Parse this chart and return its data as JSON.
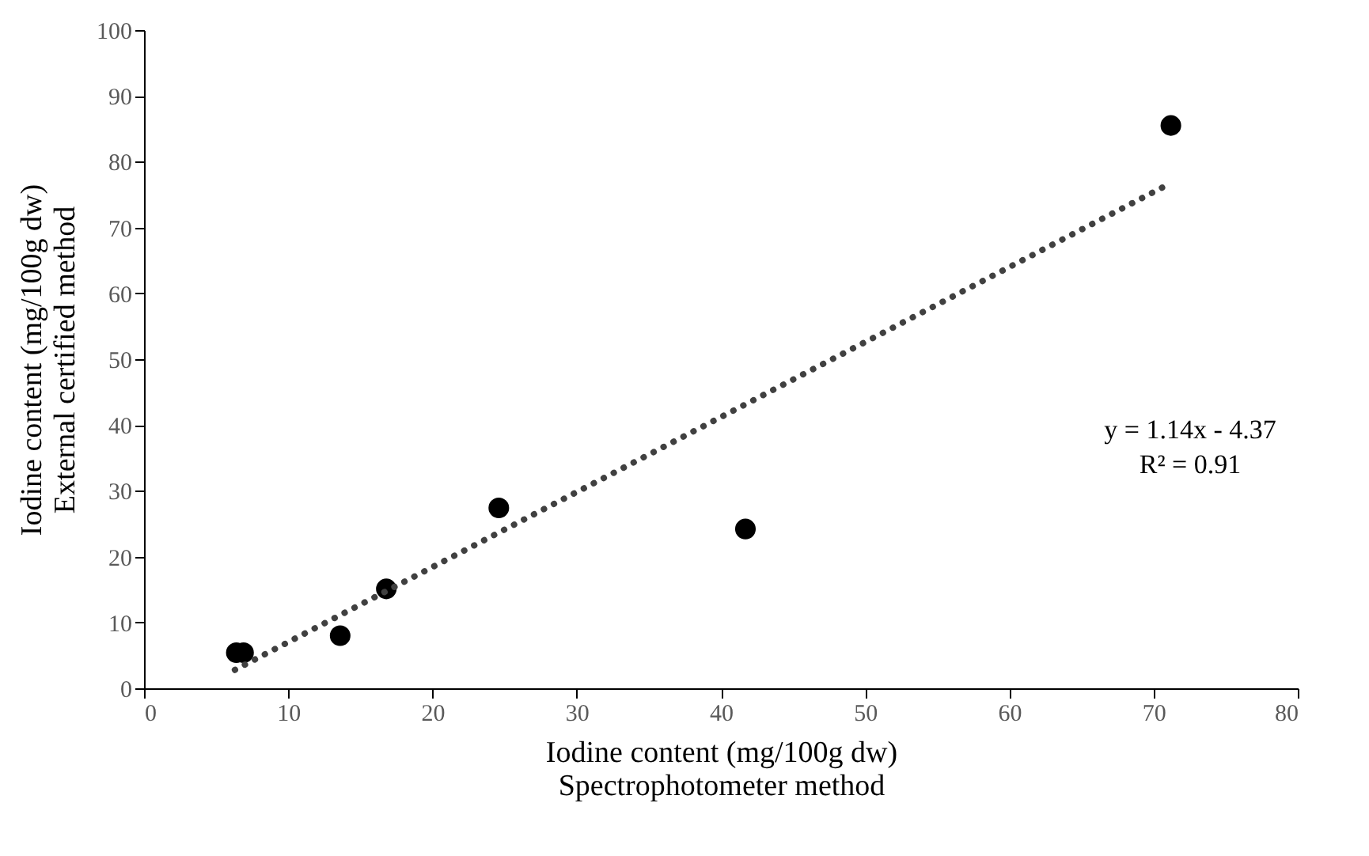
{
  "chart_data": {
    "type": "scatter",
    "xlabel": "Iodine content (mg/100g dw)\nSpectrophotometer method",
    "ylabel": "Iodine content (mg/100g dw)\nExternal certified method",
    "xlim": [
      0,
      80
    ],
    "xticks": [
      0,
      10,
      20,
      30,
      40,
      50,
      60,
      70,
      80
    ],
    "ylim": [
      0,
      100
    ],
    "yticks": [
      0,
      10,
      20,
      30,
      40,
      50,
      60,
      70,
      80,
      90,
      100
    ],
    "grid": false,
    "marker": "circle",
    "series": [
      {
        "color": "#000000",
        "x": [
          6.4,
          6.9,
          13.6,
          16.8,
          24.6,
          41.7,
          71.2
        ],
        "values": [
          5.4,
          5.4,
          8.0,
          15.1,
          27.4,
          24.2,
          85.5
        ]
      },
      {
        "type": "line",
        "color": "#404040",
        "line_style": "dotted",
        "marker": "none",
        "x": [
          6.3,
          70.8
        ],
        "values": [
          2.8,
          76.3
        ]
      }
    ],
    "annotations": [
      "y = 1.14x - 4.37\nR² = 0.91"
    ]
  }
}
